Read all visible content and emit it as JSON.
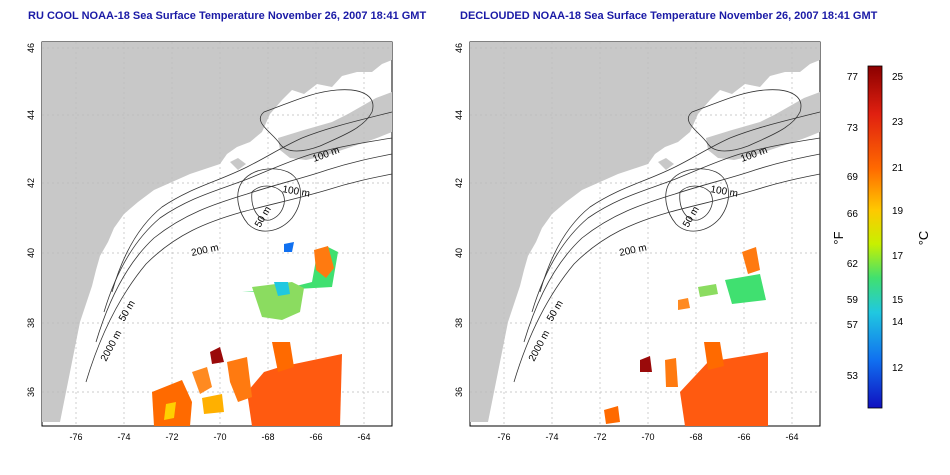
{
  "left_panel": {
    "title": "RU COOL NOAA-18 Sea Surface Temperature November 26, 2007 18:41 GMT",
    "x_ticks": [
      "-76",
      "-74",
      "-72",
      "-70",
      "-68",
      "-66",
      "-64"
    ],
    "y_ticks": [
      "36",
      "38",
      "40",
      "42",
      "44",
      "46"
    ],
    "contour_labels": [
      "100 m",
      "100 m",
      "50 m",
      "200 m",
      "50 m",
      "2000 m"
    ]
  },
  "right_panel": {
    "title": "DECLOUDED NOAA-18 Sea Surface Temperature November 26, 2007 18:41 GMT",
    "x_ticks": [
      "-76",
      "-74",
      "-72",
      "-70",
      "-68",
      "-66",
      "-64"
    ],
    "y_ticks": [
      "36",
      "38",
      "40",
      "42",
      "44",
      "46"
    ],
    "contour_labels": [
      "100 m",
      "100 m",
      "50 m",
      "200 m",
      "50 m",
      "2000 m"
    ]
  },
  "colorbar": {
    "fahrenheit_label": "°F",
    "celsius_label": "°C",
    "fahrenheit_ticks": [
      "77",
      "73",
      "69",
      "66",
      "62",
      "59",
      "57",
      "53"
    ],
    "celsius_ticks": [
      "25",
      "23",
      "21",
      "19",
      "17",
      "15",
      "14",
      "12"
    ],
    "colors": [
      "#8b0000",
      "#e02010",
      "#ff6a00",
      "#ffc800",
      "#c8f000",
      "#40e070",
      "#20c8e0",
      "#1070f0",
      "#1010c0"
    ]
  },
  "colors": {
    "land": "#c8c8c8",
    "ocean": "#ffffff",
    "title": "#1a1aa6",
    "contour": "#333333"
  }
}
